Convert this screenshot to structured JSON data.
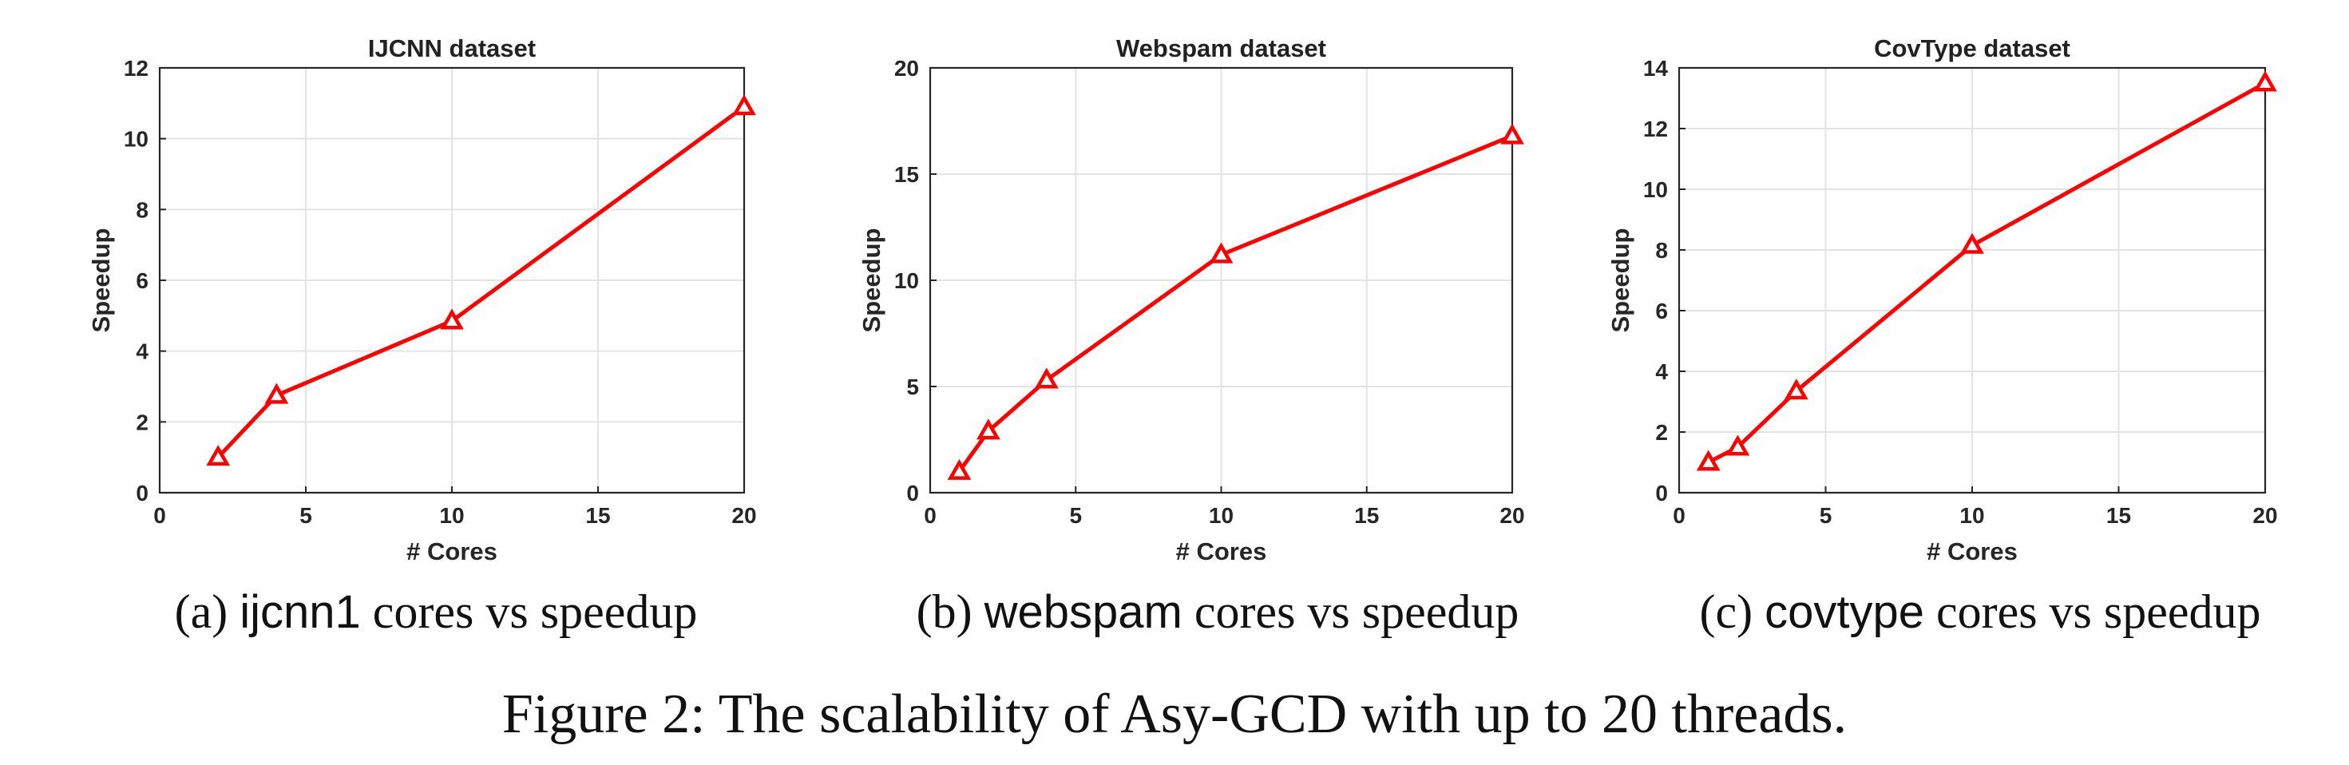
{
  "chart_data": [
    {
      "type": "line",
      "title": "IJCNN dataset",
      "xlabel": "# Cores",
      "ylabel": "Speedup",
      "xlim": [
        0,
        20
      ],
      "ylim": [
        0,
        12
      ],
      "xticks": [
        0,
        5,
        10,
        15,
        20
      ],
      "yticks": [
        0,
        2,
        4,
        6,
        8,
        10,
        12
      ],
      "grid": true,
      "color": "#ff0000",
      "marker": "triangle",
      "x": [
        2,
        4,
        10,
        20
      ],
      "y": [
        1.0,
        2.75,
        4.85,
        10.9
      ]
    },
    {
      "type": "line",
      "title": "Webspam dataset",
      "xlabel": "# Cores",
      "ylabel": "Speedup",
      "xlim": [
        0,
        20
      ],
      "ylim": [
        0,
        20
      ],
      "xticks": [
        0,
        5,
        10,
        15,
        20
      ],
      "yticks": [
        0,
        5,
        10,
        15,
        20
      ],
      "grid": true,
      "color": "#ff0000",
      "marker": "triangle",
      "x": [
        1,
        2,
        4,
        10,
        20
      ],
      "y": [
        1.0,
        2.9,
        5.3,
        11.2,
        16.8
      ]
    },
    {
      "type": "line",
      "title": "CovType dataset",
      "xlabel": "# Cores",
      "ylabel": "Speedup",
      "xlim": [
        0,
        20
      ],
      "ylim": [
        0,
        14
      ],
      "xticks": [
        0,
        5,
        10,
        15,
        20
      ],
      "yticks": [
        0,
        2,
        4,
        6,
        8,
        10,
        12,
        14
      ],
      "grid": true,
      "color": "#ff0000",
      "marker": "triangle",
      "x": [
        1,
        2,
        4,
        10,
        20
      ],
      "y": [
        1.0,
        1.5,
        3.35,
        8.15,
        13.5
      ]
    }
  ],
  "subcaptions": [
    {
      "prefix": "(a) ",
      "dataset": "ijcnn1",
      "suffix": " cores vs speedup"
    },
    {
      "prefix": "(b) ",
      "dataset": "webspam",
      "suffix": " cores vs speedup"
    },
    {
      "prefix": "(c) ",
      "dataset": "covtype",
      "suffix": " cores vs speedup"
    }
  ],
  "figure_caption": "Figure 2: The scalability of Asy-GCD with up to 20 threads."
}
